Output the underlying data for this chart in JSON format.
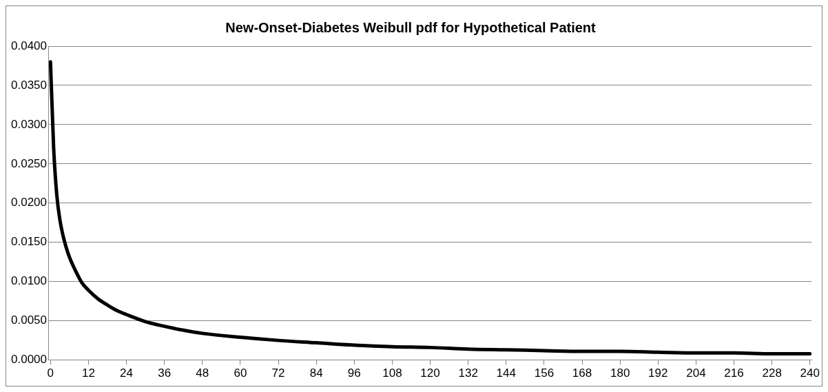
{
  "chart_data": {
    "type": "line",
    "title": "New-Onset-Diabetes Weibull pdf for Hypothetical Patient",
    "x": [
      0,
      1,
      2,
      3,
      4,
      5,
      6,
      8,
      10,
      12,
      15,
      18,
      21,
      24,
      30,
      36,
      42,
      48,
      60,
      72,
      84,
      96,
      108,
      120,
      132,
      144,
      156,
      168,
      180,
      192,
      204,
      216,
      228,
      240
    ],
    "series": [
      {
        "color": "#000000",
        "values": [
          0.038,
          0.027,
          0.021,
          0.0178,
          0.0158,
          0.0143,
          0.0131,
          0.0113,
          0.0098,
          0.0089,
          0.0078,
          0.007,
          0.0063,
          0.0058,
          0.0049,
          0.0043,
          0.0038,
          0.0034,
          0.0029,
          0.0025,
          0.0022,
          0.0019,
          0.0017,
          0.0016,
          0.0014,
          0.0013,
          0.0012,
          0.0011,
          0.0011,
          0.001,
          0.0009,
          0.0009,
          0.0008,
          0.0008
        ]
      }
    ],
    "xlim": [
      -0.5,
      240.5
    ],
    "xticks": [
      0,
      12,
      24,
      36,
      48,
      60,
      72,
      84,
      96,
      108,
      120,
      132,
      144,
      156,
      168,
      180,
      192,
      204,
      216,
      228,
      240
    ],
    "ylim": [
      0,
      0.04
    ],
    "yticks": [
      {
        "value": 0,
        "label": "0.0000"
      },
      {
        "value": 0.005,
        "label": "0.0050"
      },
      {
        "value": 0.01,
        "label": "0.0100"
      },
      {
        "value": 0.015,
        "label": "0.0150"
      },
      {
        "value": 0.02,
        "label": "0.0200"
      },
      {
        "value": 0.025,
        "label": "0.0250"
      },
      {
        "value": 0.03,
        "label": "0.0300"
      },
      {
        "value": 0.035,
        "label": "0.0350"
      },
      {
        "value": 0.04,
        "label": "0.0400"
      }
    ],
    "grid": "y",
    "legend": false,
    "marker": "none",
    "line_style": "solid"
  }
}
